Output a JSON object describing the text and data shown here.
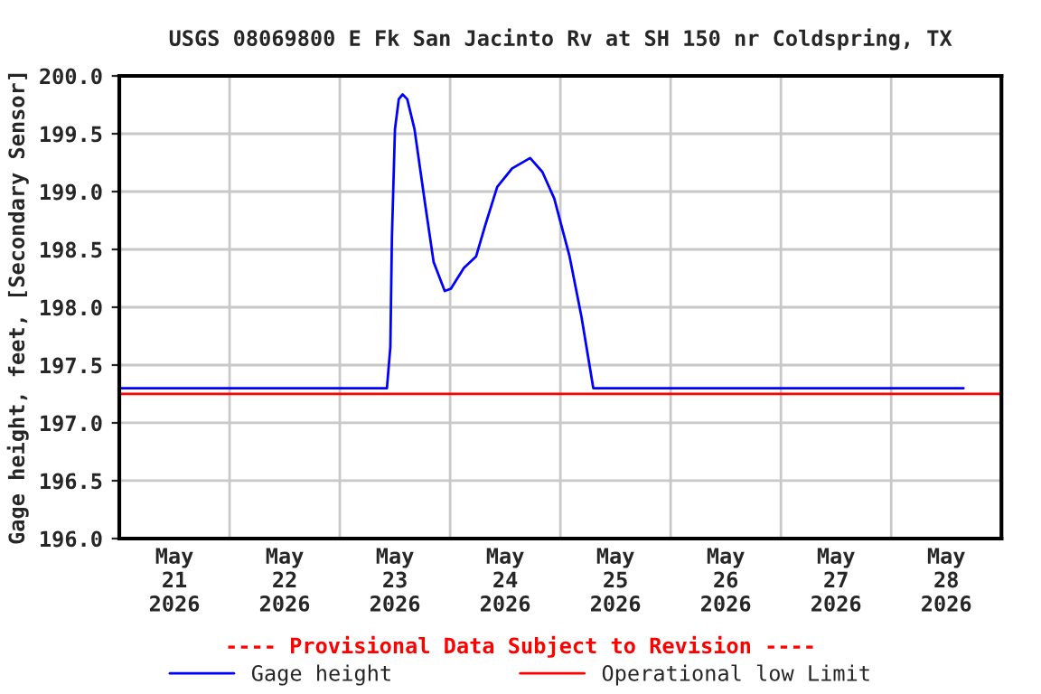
{
  "chart_data": {
    "type": "line",
    "title": "USGS 08069800 E Fk San Jacinto Rv at SH 150 nr Coldspring, TX",
    "ylabel": "Gage height, feet, [Secondary Sensor]",
    "x": [
      "2026-05-21T00:00",
      "2026-05-23T10:15",
      "2026-05-23T11:00",
      "2026-05-23T11:20",
      "2026-05-23T12:00",
      "2026-05-23T12:50",
      "2026-05-23T13:40",
      "2026-05-23T14:40",
      "2026-05-23T16:15",
      "2026-05-23T18:30",
      "2026-05-23T20:25",
      "2026-05-23T22:50",
      "2026-05-24T00:10",
      "2026-05-24T03:00",
      "2026-05-24T05:40",
      "2026-05-24T07:35",
      "2026-05-24T10:15",
      "2026-05-24T13:30",
      "2026-05-24T17:25",
      "2026-05-24T20:05",
      "2026-05-24T22:40",
      "2026-05-25T02:00",
      "2026-05-25T04:35",
      "2026-05-25T07:10",
      "2026-05-28T15:45"
    ],
    "series": [
      {
        "name": "Gage height",
        "color": "#0000ff",
        "values": [
          197.3,
          197.3,
          197.66,
          198.6,
          199.54,
          199.8,
          199.84,
          199.8,
          199.54,
          198.91,
          198.39,
          198.14,
          198.16,
          198.34,
          198.44,
          198.7,
          199.04,
          199.2,
          199.29,
          199.17,
          198.94,
          198.44,
          197.92,
          197.3,
          197.3
        ]
      }
    ],
    "ref_lines": [
      {
        "axis": "y",
        "value": 197.25,
        "label": "Operational low Limit",
        "color": "#ff0000"
      }
    ],
    "xlim": [
      "2026-05-21T00:00",
      "2026-05-29T00:00"
    ],
    "xticks": [
      {
        "value": "2026-05-21T12:00",
        "label": "May\n21\n2026"
      },
      {
        "value": "2026-05-22T00:00",
        "label": null
      },
      {
        "value": "2026-05-22T12:00",
        "label": "May\n22\n2026"
      },
      {
        "value": "2026-05-23T00:00",
        "label": null
      },
      {
        "value": "2026-05-23T12:00",
        "label": "May\n23\n2026"
      },
      {
        "value": "2026-05-24T00:00",
        "label": null
      },
      {
        "value": "2026-05-24T12:00",
        "label": "May\n24\n2026"
      },
      {
        "value": "2026-05-25T00:00",
        "label": null
      },
      {
        "value": "2026-05-25T12:00",
        "label": "May\n25\n2026"
      },
      {
        "value": "2026-05-26T00:00",
        "label": null
      },
      {
        "value": "2026-05-26T12:00",
        "label": "May\n26\n2026"
      },
      {
        "value": "2026-05-27T00:00",
        "label": null
      },
      {
        "value": "2026-05-27T12:00",
        "label": "May\n27\n2026"
      },
      {
        "value": "2026-05-28T00:00",
        "label": null
      },
      {
        "value": "2026-05-28T12:00",
        "label": "May\n28\n2026"
      }
    ],
    "ylim": [
      196.0,
      200.0
    ],
    "yticks": [
      {
        "value": 196.0,
        "label": "196.0"
      },
      {
        "value": 196.5,
        "label": "196.5"
      },
      {
        "value": 197.0,
        "label": "197.0"
      },
      {
        "value": 197.5,
        "label": "197.5"
      },
      {
        "value": 198.0,
        "label": "198.0"
      },
      {
        "value": 198.5,
        "label": "198.5"
      },
      {
        "value": 199.0,
        "label": "199.0"
      },
      {
        "value": 199.5,
        "label": "199.5"
      },
      {
        "value": 200.0,
        "label": "200.0"
      }
    ],
    "grid": true,
    "legend": "bottom",
    "marker": "none",
    "line_style": "solid",
    "annotations": [
      "---- Provisional Data Subject to Revision ----"
    ]
  }
}
